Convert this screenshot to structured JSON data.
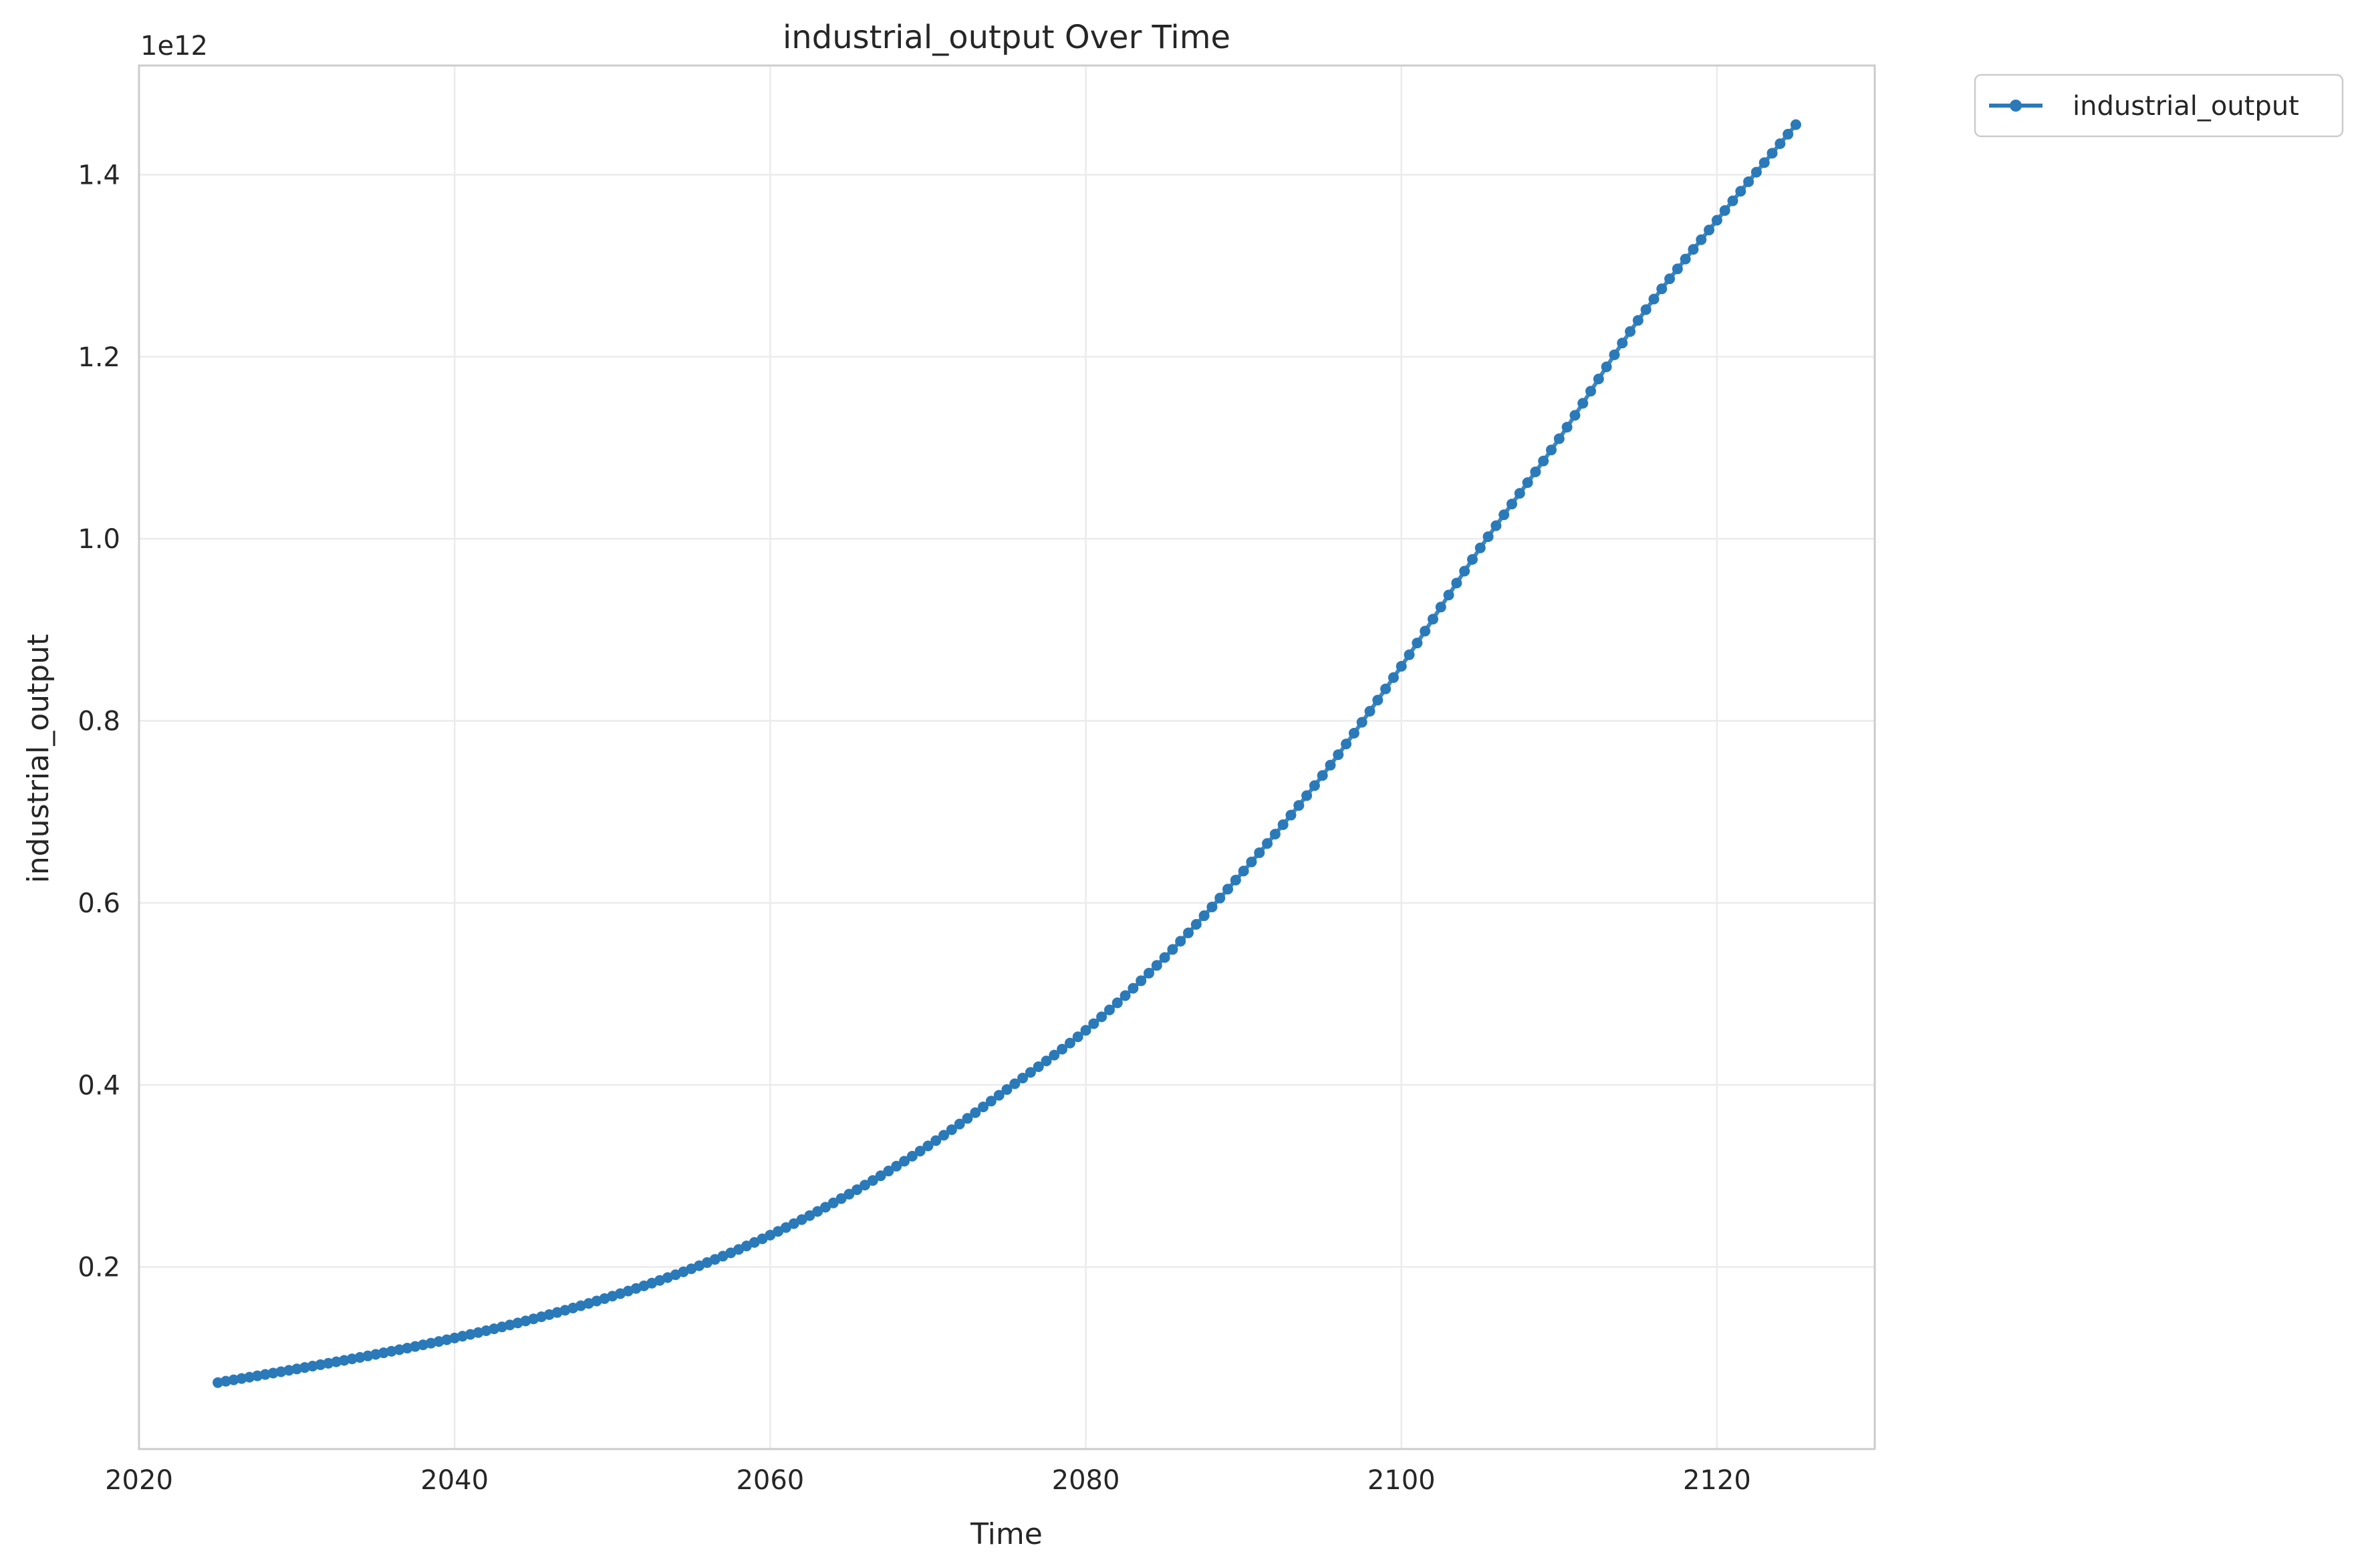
{
  "chart_data": {
    "type": "line",
    "title": "industrial_output Over Time",
    "xlabel": "Time",
    "ylabel": "industrial_output",
    "y_offset_label": "1e12",
    "y_multiplier": 1000000000000.0,
    "xlim": [
      2020,
      2130
    ],
    "ylim": [
      0.0,
      1.52
    ],
    "x_ticks": [
      2020,
      2040,
      2060,
      2080,
      2100,
      2120
    ],
    "x_tick_labels": [
      "2020",
      "2040",
      "2060",
      "2080",
      "2100",
      "2120"
    ],
    "y_ticks": [
      0.2,
      0.4,
      0.6,
      0.8,
      1.0,
      1.2,
      1.4
    ],
    "y_tick_labels": [
      "0.2",
      "0.4",
      "0.6",
      "0.8",
      "1.0",
      "1.2",
      "1.4"
    ],
    "grid": true,
    "legend": {
      "position": "outside-top-right",
      "entries": [
        "industrial_output"
      ]
    },
    "series": [
      {
        "name": "industrial_output",
        "color": "#2a7ab9",
        "marker": "circle",
        "x_start": 2025,
        "x_step": 0.5,
        "anchor_x": [
          2025,
          2030,
          2035,
          2040,
          2045,
          2050,
          2055,
          2060,
          2065,
          2070,
          2075,
          2080,
          2085,
          2090,
          2095,
          2100,
          2105,
          2110,
          2115,
          2120,
          2125
        ],
        "anchor_y": [
          0.073,
          0.088,
          0.104,
          0.122,
          0.143,
          0.168,
          0.198,
          0.235,
          0.28,
          0.333,
          0.395,
          0.46,
          0.54,
          0.635,
          0.74,
          0.86,
          0.99,
          1.11,
          1.24,
          1.35,
          1.455
        ]
      }
    ]
  }
}
